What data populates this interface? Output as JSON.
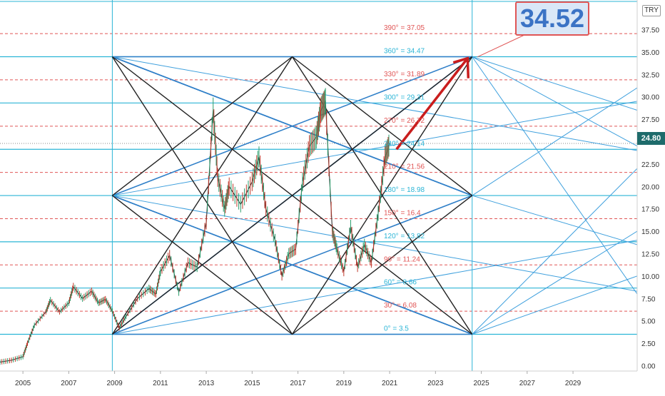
{
  "chart_data": {
    "type": "line",
    "title": "",
    "currency": "TRY",
    "current_price": "24.80",
    "callout_value": "34.52",
    "x_tick_labels": [
      "2005",
      "2007",
      "2009",
      "2011",
      "2013",
      "2015",
      "2017",
      "2019",
      "2021",
      "2023",
      "2025",
      "2027",
      "2029"
    ],
    "y_tick_labels": [
      "0.00",
      "2.50",
      "5.00",
      "7.50",
      "10.00",
      "12.50",
      "15.00",
      "17.50",
      "20.00",
      "22.50",
      "25.00",
      "27.50",
      "30.00",
      "32.50",
      "35.00",
      "37.50"
    ],
    "xlim": [
      2004.0,
      2031.8
    ],
    "ylim": [
      -0.6,
      40.8
    ],
    "gann_levels": [
      {
        "label": "0° = 3.5",
        "value": 3.5,
        "color": "#2bb5d6",
        "style": "solid"
      },
      {
        "label": "30° = 6.08",
        "value": 6.08,
        "color": "#e05555",
        "style": "dashed"
      },
      {
        "label": "60° = 8.66",
        "value": 8.66,
        "color": "#2bb5d6",
        "style": "solid"
      },
      {
        "label": "90° = 11.24",
        "value": 11.24,
        "color": "#e05555",
        "style": "dashed"
      },
      {
        "label": "120° = 13.82",
        "value": 13.82,
        "color": "#2bb5d6",
        "style": "solid"
      },
      {
        "label": "150° = 16.4",
        "value": 16.4,
        "color": "#e05555",
        "style": "dashed"
      },
      {
        "label": "180° = 18.98",
        "value": 18.98,
        "color": "#2bb5d6",
        "style": "solid"
      },
      {
        "label": "210° = 21.56",
        "value": 21.56,
        "color": "#e05555",
        "style": "dashed"
      },
      {
        "label": "240° = 24.14",
        "value": 24.14,
        "color": "#2bb5d6",
        "style": "solid"
      },
      {
        "label": "270° = 26.72",
        "value": 26.72,
        "color": "#e05555",
        "style": "dashed"
      },
      {
        "label": "300° = 29.31",
        "value": 29.31,
        "color": "#2bb5d6",
        "style": "solid"
      },
      {
        "label": "330° = 31.89",
        "value": 31.89,
        "color": "#e05555",
        "style": "dashed"
      },
      {
        "label": "360° = 34.47",
        "value": 34.47,
        "color": "#2bb5d6",
        "style": "solid"
      },
      {
        "label": "390° = 37.05",
        "value": 37.05,
        "color": "#e05555",
        "style": "dashed"
      }
    ],
    "price_series": {
      "name": "",
      "x": [
        2004.0,
        2004.5,
        2005.0,
        2005.2,
        2005.5,
        2006.0,
        2006.2,
        2006.6,
        2007.0,
        2007.2,
        2007.6,
        2008.0,
        2008.3,
        2008.6,
        2008.9,
        2009.2,
        2009.5,
        2010.0,
        2010.5,
        2010.8,
        2011.0,
        2011.4,
        2011.8,
        2012.2,
        2012.6,
        2013.0,
        2013.3,
        2013.5,
        2013.8,
        2014.0,
        2014.5,
        2015.0,
        2015.3,
        2015.6,
        2016.0,
        2016.3,
        2016.6,
        2016.9,
        2017.2,
        2017.5,
        2017.8,
        2018.0,
        2018.2,
        2018.5,
        2018.7,
        2019.0,
        2019.3,
        2019.6,
        2019.9,
        2020.2,
        2020.5,
        2020.8,
        2021.0
      ],
      "y": [
        0.4,
        0.6,
        1.0,
        2.5,
        4.5,
        6.0,
        7.3,
        6.0,
        7.0,
        8.8,
        7.5,
        8.3,
        7.0,
        7.4,
        6.1,
        4.2,
        5.5,
        7.5,
        8.6,
        8.0,
        10.5,
        12.3,
        8.2,
        11.5,
        11.0,
        16.0,
        28.5,
        21.0,
        17.5,
        20.0,
        18.0,
        20.5,
        23.3,
        17.5,
        14.0,
        10.0,
        12.5,
        13.0,
        20.5,
        24.5,
        25.5,
        28.5,
        29.5,
        15.0,
        13.0,
        10.5,
        15.5,
        11.0,
        13.5,
        11.5,
        17.0,
        23.3,
        24.8
      ],
      "color": "#333333"
    },
    "target_arrow": {
      "from": [
        2021.3,
        24.14
      ],
      "to": [
        2024.4,
        34.3
      ],
      "color": "#c91d1d"
    },
    "gann_square": {
      "x_start": 2008.9,
      "x_mid": 2016.75,
      "x_end": 2024.6,
      "y_low": 3.5,
      "y_mid": 18.98,
      "y_high": 34.47,
      "star_color": "#222222",
      "fan_color": "#2f7fc8",
      "projection_color": "#3fa0dd"
    }
  }
}
